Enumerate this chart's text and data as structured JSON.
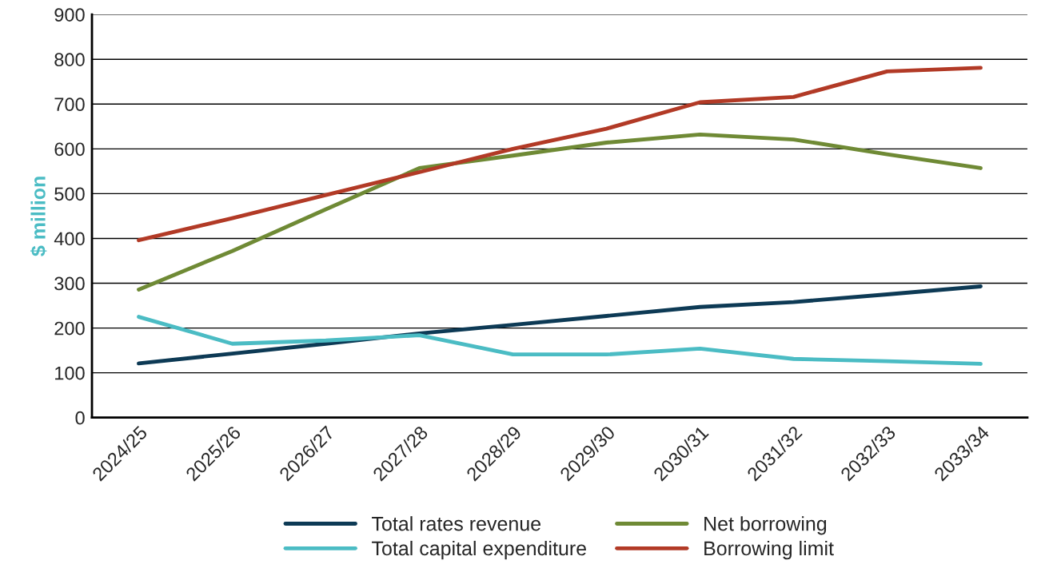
{
  "chart_data": {
    "type": "line",
    "ylabel": "$ million",
    "categories": [
      "2024/25",
      "2025/26",
      "2026/27",
      "2027/28",
      "2028/29",
      "2029/30",
      "2030/31",
      "2031/32",
      "2032/33",
      "2033/34"
    ],
    "series": [
      {
        "name": "Total rates revenue",
        "color": "#0d3a55",
        "values": [
          121,
          143,
          165,
          188,
          207,
          227,
          247,
          258,
          275,
          293
        ]
      },
      {
        "name": "Total capital expenditure",
        "color": "#4bbcc4",
        "values": [
          225,
          165,
          172,
          184,
          141,
          141,
          154,
          131,
          126,
          120
        ]
      },
      {
        "name": "Net borrowing",
        "color": "#6f8a35",
        "values": [
          286,
          372,
          465,
          557,
          585,
          614,
          632,
          621,
          588,
          557
        ]
      },
      {
        "name": "Borrowing limit",
        "color": "#b23a26",
        "values": [
          396,
          445,
          497,
          548,
          600,
          645,
          704,
          716,
          773,
          781
        ]
      }
    ],
    "ylim": [
      0,
      900
    ],
    "yticks": [
      0,
      100,
      200,
      300,
      400,
      500,
      600,
      700,
      800,
      900
    ],
    "grid": "y",
    "legend": "bottom",
    "marker": "none",
    "line_style": "solid"
  }
}
